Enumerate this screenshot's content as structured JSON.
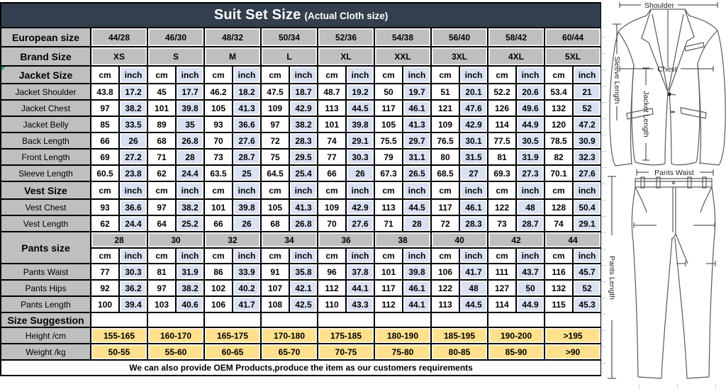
{
  "palette": {
    "title_bg": "#333F4F",
    "title_text": "#FFFFFF",
    "header_gray": "#BFBFBF",
    "unit_gold": "#F2D46E",
    "range_gold": "#FFE08C",
    "inch_blue": "#D9E1F2",
    "border_black": "#000000",
    "comment_marker": "#2E9E94"
  },
  "table": {
    "title": "Suit Set Size",
    "title_suffix": "(Actual Cloth size)",
    "units": {
      "cm": "cm",
      "inch": "inch"
    },
    "rows": [
      {
        "kind": "sizes",
        "label": "European size",
        "cells": [
          "44/28",
          "46/30",
          "48/32",
          "50/34",
          "52/36",
          "54/38",
          "56/40",
          "58/42",
          "60/44"
        ]
      },
      {
        "kind": "sizes",
        "label": "Brand Size",
        "cells": [
          "XS",
          "S",
          "M",
          "L",
          "XL",
          "XXL",
          "3XL",
          "4XL",
          "5XL"
        ]
      },
      {
        "kind": "units",
        "label": "Jacket Size",
        "marker": true
      },
      {
        "kind": "data",
        "label": "Jacket Shoulder",
        "cm": [
          "43.8",
          "45",
          "46.2",
          "47.5",
          "48.7",
          "50",
          "51",
          "52.2",
          "53.4"
        ],
        "inch": [
          "17.2",
          "17.7",
          "18.2",
          "18.7",
          "19.2",
          "19.7",
          "20.1",
          "20.6",
          "21"
        ]
      },
      {
        "kind": "data",
        "label": "Jacket Chest",
        "cm": [
          "97",
          "101",
          "105",
          "109",
          "113",
          "117",
          "121",
          "126",
          "132"
        ],
        "inch": [
          "38.2",
          "39.8",
          "41.3",
          "42.9",
          "44.5",
          "46.1",
          "47.6",
          "49.6",
          "52"
        ]
      },
      {
        "kind": "data",
        "label": "Jacket Belly",
        "cm": [
          "85",
          "89",
          "93",
          "97",
          "101",
          "105",
          "109",
          "114",
          "120"
        ],
        "inch": [
          "33.5",
          "35",
          "36.6",
          "38.2",
          "39.8",
          "41.3",
          "42.9",
          "44.9",
          "47.2"
        ]
      },
      {
        "kind": "data",
        "label": "Back Length",
        "cm": [
          "66",
          "68",
          "70",
          "72",
          "74",
          "75.5",
          "76.5",
          "77.5",
          "78.5"
        ],
        "inch": [
          "26",
          "26.8",
          "27.6",
          "28.3",
          "29.1",
          "29.7",
          "30.1",
          "30.5",
          "30.9"
        ]
      },
      {
        "kind": "data",
        "label": "Front Length",
        "cm": [
          "69",
          "71",
          "73",
          "75",
          "77",
          "79",
          "80",
          "81",
          "82"
        ],
        "inch": [
          "27.2",
          "28",
          "28.7",
          "29.5",
          "30.3",
          "31.1",
          "31.5",
          "31.9",
          "32.3"
        ]
      },
      {
        "kind": "data",
        "label": "Sleeve Length",
        "cm": [
          "60.5",
          "62",
          "63.5",
          "64.5",
          "66",
          "67.3",
          "68.5",
          "69.3",
          "70.1"
        ],
        "inch": [
          "23.8",
          "24.4",
          "25",
          "25.4",
          "26",
          "26.5",
          "27",
          "27.3",
          "27.6"
        ]
      },
      {
        "kind": "units",
        "label": "Vest Size"
      },
      {
        "kind": "data",
        "label": "Vest Chest",
        "cm": [
          "93",
          "97",
          "101",
          "105",
          "109",
          "113",
          "117",
          "122",
          "128"
        ],
        "inch": [
          "36.6",
          "38.2",
          "39.8",
          "41.3",
          "42.9",
          "44.5",
          "46.1",
          "48",
          "50.4"
        ]
      },
      {
        "kind": "data",
        "label": "Vest Length",
        "cm": [
          "62",
          "64",
          "66",
          "68",
          "70",
          "71",
          "72",
          "73",
          "74"
        ],
        "inch": [
          "24.4",
          "25.2",
          "26",
          "26.8",
          "27.6",
          "28",
          "28.3",
          "28.7",
          "29.1"
        ]
      },
      {
        "kind": "pants",
        "label": "Pants size",
        "cells": [
          "28",
          "30",
          "32",
          "34",
          "36",
          "38",
          "40",
          "42",
          "44"
        ]
      },
      {
        "kind": "data",
        "label": "Pants Waist",
        "cm": [
          "77",
          "81",
          "86",
          "91",
          "96",
          "101",
          "106",
          "111",
          "116"
        ],
        "inch": [
          "30.3",
          "31.9",
          "33.9",
          "35.8",
          "37.8",
          "39.8",
          "41.7",
          "43.7",
          "45.7"
        ]
      },
      {
        "kind": "data",
        "label": "Pants Hips",
        "cm": [
          "92",
          "97",
          "102",
          "107",
          "112",
          "117",
          "122",
          "127",
          "132"
        ],
        "inch": [
          "36.2",
          "38.2",
          "40.2",
          "42.1",
          "44.1",
          "46.1",
          "48",
          "50",
          "52"
        ]
      },
      {
        "kind": "data",
        "label": "Pants Length",
        "cm": [
          "100",
          "103",
          "106",
          "108",
          "110",
          "112",
          "113",
          "114",
          "115"
        ],
        "inch": [
          "39.4",
          "40.6",
          "41.7",
          "42.5",
          "43.3",
          "44.1",
          "44.5",
          "44.9",
          "45.3"
        ]
      },
      {
        "kind": "empty",
        "label": "Size Suggestion"
      },
      {
        "kind": "yellow",
        "label": "Height /cm",
        "cells": [
          "155-165",
          "160-170",
          "165-175",
          "170-180",
          "175-185",
          "180-190",
          "185-195",
          "190-200",
          ">195"
        ]
      },
      {
        "kind": "yellow",
        "label": "Weight /kg",
        "cells": [
          "50-55",
          "55-60",
          "60-65",
          "65-70",
          "70-75",
          "75-80",
          "80-85",
          "85-90",
          ">90"
        ]
      },
      {
        "kind": "note",
        "text": "We can also provide OEM Products,produce the item as our customers requirements"
      }
    ]
  },
  "diagram": {
    "labels": {
      "shoulder": "Shoulder",
      "chest": "Chest",
      "jacket_length": "Jacket Length",
      "sleeve_length": "Sleeve Length",
      "pants_waist": "Pants Waist",
      "pants_length": "Pants Length"
    }
  }
}
